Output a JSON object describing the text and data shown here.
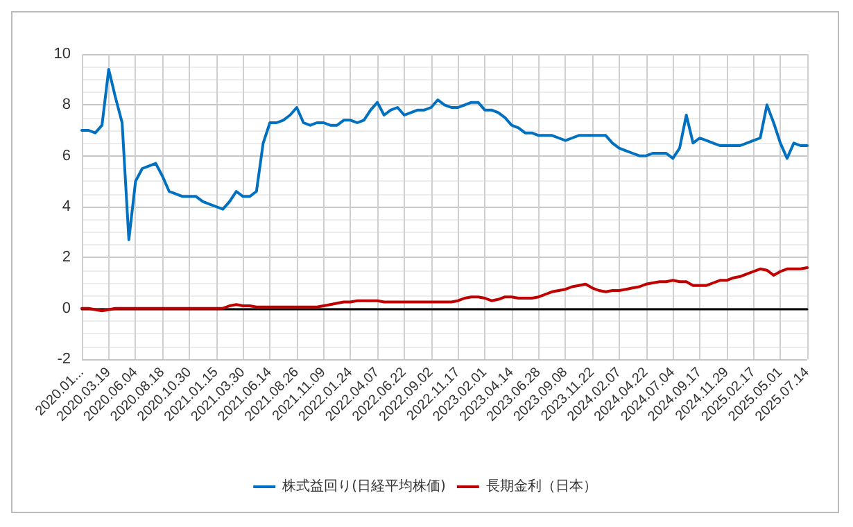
{
  "chart_data": {
    "type": "line",
    "categories": [
      "2020.01...",
      null,
      null,
      null,
      "2020.03.19",
      null,
      null,
      null,
      "2020.06.04",
      null,
      null,
      null,
      "2020.08.18",
      null,
      null,
      null,
      "2020.10.30",
      null,
      null,
      null,
      "2021.01.15",
      null,
      null,
      null,
      "2021.03.30",
      null,
      null,
      null,
      "2021.06.14",
      null,
      null,
      null,
      "2021.08.26",
      null,
      null,
      null,
      "2021.11.09",
      null,
      null,
      null,
      "2022.01.24",
      null,
      null,
      null,
      "2022.04.07",
      null,
      null,
      null,
      "2022.06.22",
      null,
      null,
      null,
      "2022.09.02",
      null,
      null,
      null,
      "2022.11.17",
      null,
      null,
      null,
      "2023.02.01",
      null,
      null,
      null,
      "2023.04.14",
      null,
      null,
      null,
      "2023.06.28",
      null,
      null,
      null,
      "2023.09.08",
      null,
      null,
      null,
      "2023.11.22",
      null,
      null,
      null,
      "2024.02.07",
      null,
      null,
      null,
      "2024.04.22",
      null,
      null,
      null,
      "2024.07.04",
      null,
      null,
      null,
      "2024.09.17",
      null,
      null,
      null,
      "2024.11.29",
      null,
      null,
      null,
      "2025.02.17",
      null,
      null,
      null,
      "2025.05.01",
      null,
      null,
      null,
      "2025.07.14"
    ],
    "series": [
      {
        "name": "株式益回り(日経平均株価)",
        "color": "#0070c0",
        "values": [
          7.0,
          7.0,
          6.9,
          7.2,
          9.4,
          8.3,
          7.3,
          2.7,
          5.0,
          5.5,
          5.6,
          5.7,
          5.2,
          4.6,
          4.5,
          4.4,
          4.4,
          4.4,
          4.2,
          4.1,
          4.0,
          3.9,
          4.2,
          4.6,
          4.4,
          4.4,
          4.6,
          6.5,
          7.3,
          7.3,
          7.4,
          7.6,
          7.9,
          7.3,
          7.2,
          7.3,
          7.3,
          7.2,
          7.2,
          7.4,
          7.4,
          7.3,
          7.4,
          7.8,
          8.1,
          7.6,
          7.8,
          7.9,
          7.6,
          7.7,
          7.8,
          7.8,
          7.9,
          8.2,
          8.0,
          7.9,
          7.9,
          8.0,
          8.1,
          8.1,
          7.8,
          7.8,
          7.7,
          7.5,
          7.2,
          7.1,
          6.9,
          6.9,
          6.8,
          6.8,
          6.8,
          6.7,
          6.6,
          6.7,
          6.8,
          6.8,
          6.8,
          6.8,
          6.8,
          6.5,
          6.3,
          6.2,
          6.1,
          6.0,
          6.0,
          6.1,
          6.1,
          6.1,
          5.9,
          6.3,
          7.6,
          6.5,
          6.7,
          6.6,
          6.5,
          6.4,
          6.4,
          6.4,
          6.4,
          6.5,
          6.6,
          6.7,
          8.0,
          7.3,
          6.5,
          5.9,
          6.5,
          6.4,
          6.4
        ]
      },
      {
        "name": "長期金利（日本）",
        "color": "#c00000",
        "values": [
          0.0,
          0.0,
          -0.05,
          -0.1,
          -0.05,
          0.0,
          0.0,
          0.0,
          0.0,
          0.0,
          0.0,
          0.0,
          0.0,
          0.0,
          0.0,
          0.0,
          0.0,
          0.0,
          0.0,
          0.0,
          0.0,
          0.0,
          0.1,
          0.15,
          0.1,
          0.1,
          0.05,
          0.05,
          0.05,
          0.05,
          0.05,
          0.05,
          0.05,
          0.05,
          0.05,
          0.05,
          0.1,
          0.15,
          0.2,
          0.25,
          0.25,
          0.3,
          0.3,
          0.3,
          0.3,
          0.25,
          0.25,
          0.25,
          0.25,
          0.25,
          0.25,
          0.25,
          0.25,
          0.25,
          0.25,
          0.25,
          0.3,
          0.4,
          0.45,
          0.45,
          0.4,
          0.3,
          0.35,
          0.45,
          0.45,
          0.4,
          0.4,
          0.4,
          0.45,
          0.55,
          0.65,
          0.7,
          0.75,
          0.85,
          0.9,
          0.95,
          0.8,
          0.7,
          0.65,
          0.7,
          0.7,
          0.75,
          0.8,
          0.85,
          0.95,
          1.0,
          1.05,
          1.05,
          1.1,
          1.05,
          1.05,
          0.9,
          0.9,
          0.9,
          1.0,
          1.1,
          1.1,
          1.2,
          1.25,
          1.35,
          1.45,
          1.55,
          1.5,
          1.3,
          1.45,
          1.55,
          1.55,
          1.55,
          1.6
        ]
      }
    ],
    "ylim": [
      -2,
      10
    ],
    "yticks": [
      -2,
      0,
      2,
      4,
      6,
      8,
      10
    ],
    "grid": true,
    "legend": "bottom",
    "marker": "none",
    "line_style": "solid"
  }
}
